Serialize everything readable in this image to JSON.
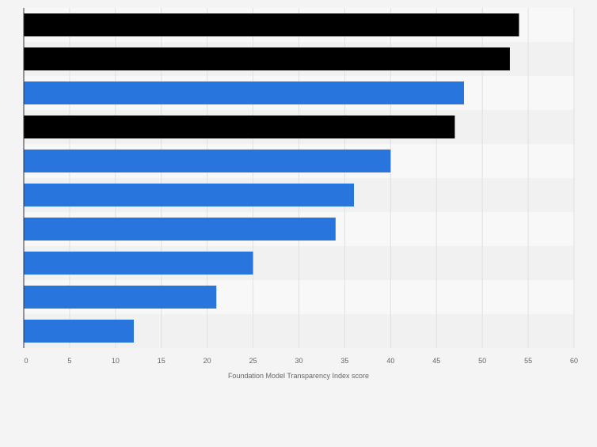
{
  "chart_data": {
    "type": "bar",
    "orientation": "horizontal",
    "categories": [
      "",
      "",
      "",
      "",
      "",
      "",
      "",
      "",
      "",
      ""
    ],
    "values": [
      54,
      53,
      48,
      47,
      40,
      36,
      34,
      25,
      21,
      12
    ],
    "bar_colors": [
      "#000000",
      "#000000",
      "#2876dd",
      "#000000",
      "#2876dd",
      "#2876dd",
      "#2876dd",
      "#2876dd",
      "#2876dd",
      "#2876dd"
    ],
    "xlabel": "Foundation Model Transparency Index score",
    "ylabel": "",
    "xlim": [
      0,
      60
    ],
    "xticks": [
      0,
      5,
      10,
      15,
      20,
      25,
      30,
      35,
      40,
      45,
      50,
      55,
      60
    ],
    "grid": true,
    "legend": "none"
  },
  "colors": {
    "background": "#f4f4f4",
    "plot_band_light": "#f8f8f8",
    "plot_band_dark": "#f1f1f1",
    "gridline": "#e0e0e0",
    "axis_line": "#333333",
    "tick_text": "#666666"
  }
}
